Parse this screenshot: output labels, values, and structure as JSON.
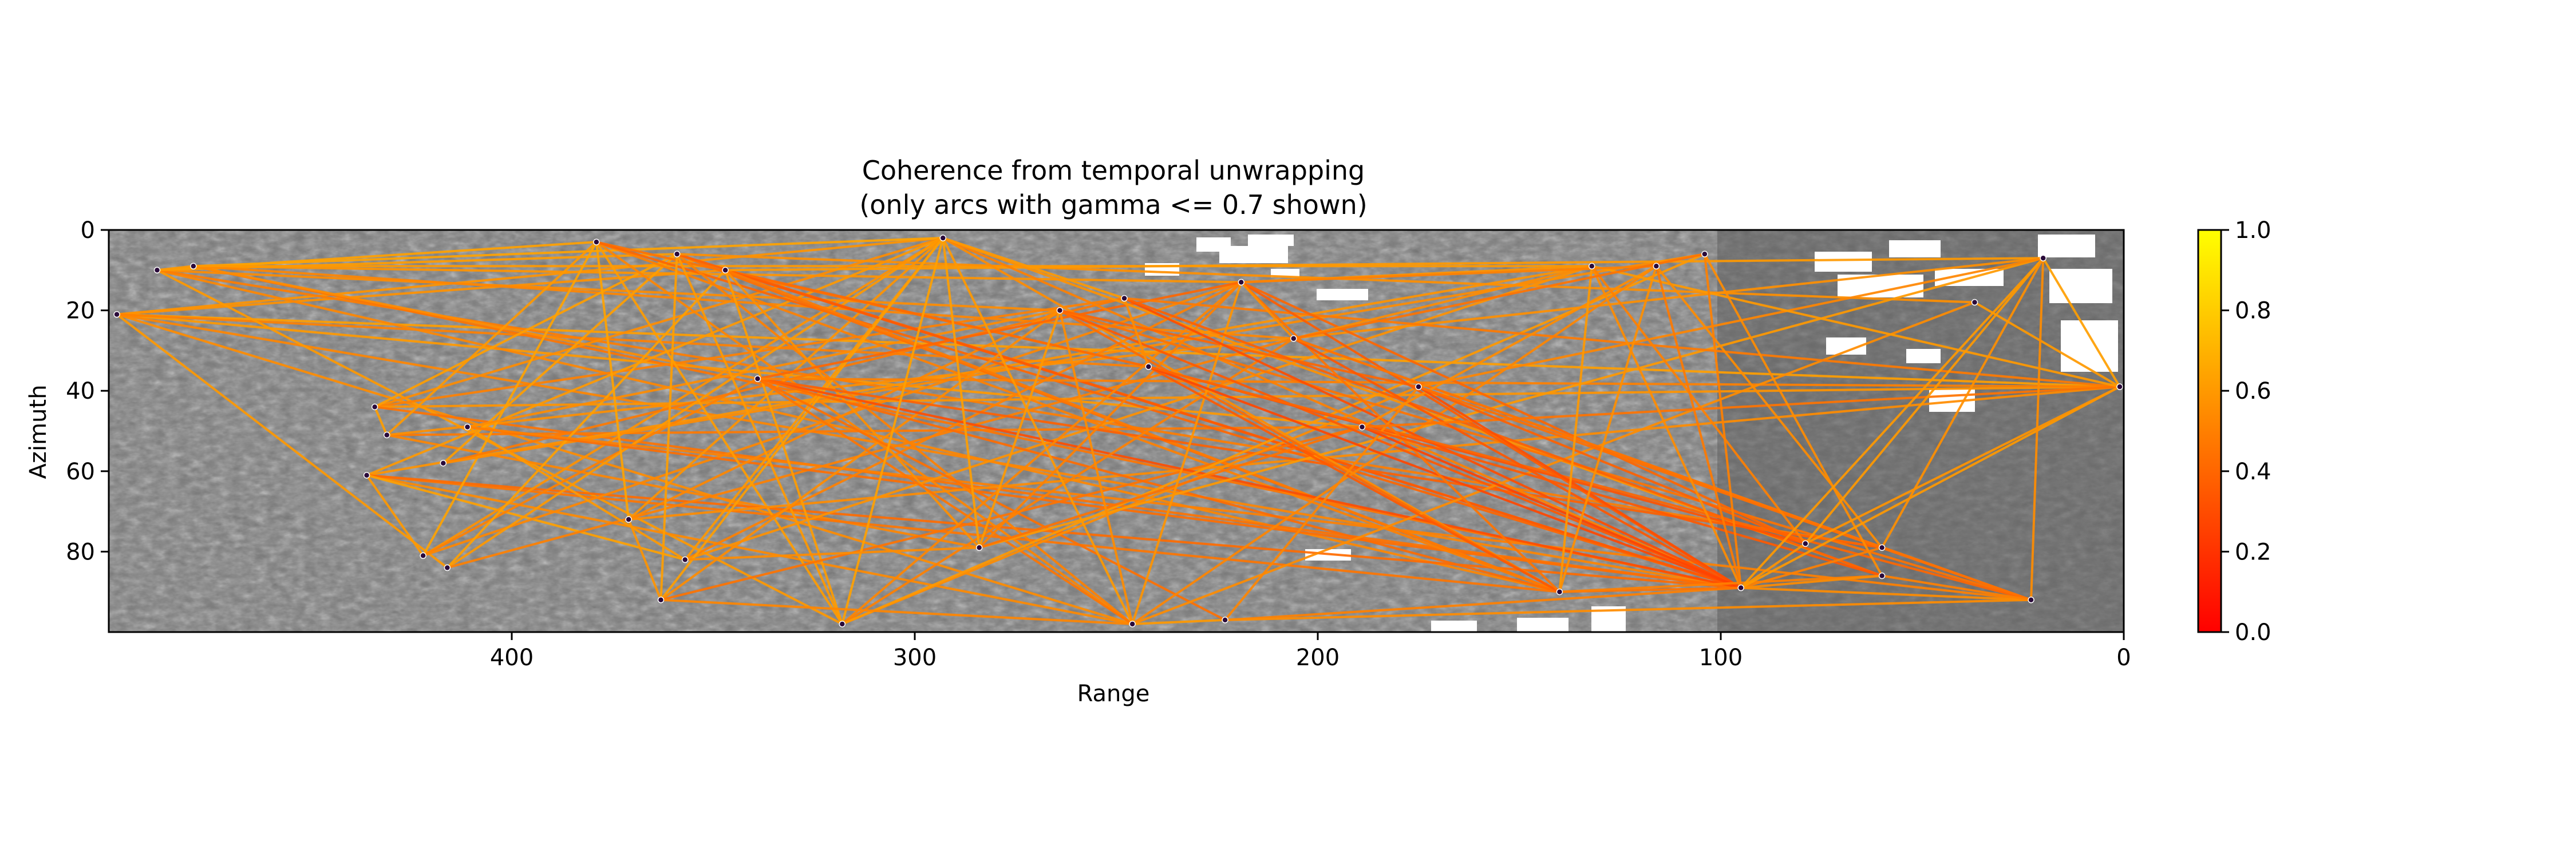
{
  "chart_data": {
    "type": "network",
    "title_line1": "Coherence from temporal unwrapping",
    "title_line2": "(only arcs with gamma <= 0.7 shown)",
    "xlabel": "Range",
    "ylabel": "Azimuth",
    "xlim": [
      500,
      0
    ],
    "ylim": [
      100,
      0
    ],
    "x_ticks": [
      400,
      300,
      200,
      100,
      0
    ],
    "y_ticks": [
      0,
      20,
      40,
      60,
      80
    ],
    "colorbar": {
      "colormap": "autumn",
      "colors": [
        "#ff0000",
        "#ffff00"
      ],
      "range": [
        0.0,
        1.0
      ],
      "ticks": [
        "0.0",
        "0.2",
        "0.4",
        "0.6",
        "0.8",
        "1.0"
      ]
    },
    "points": [
      [
        498,
        21
      ],
      [
        488,
        10
      ],
      [
        479,
        9
      ],
      [
        434,
        44
      ],
      [
        431,
        51
      ],
      [
        436,
        61
      ],
      [
        422,
        81
      ],
      [
        417,
        58
      ],
      [
        416,
        84
      ],
      [
        411,
        49
      ],
      [
        379,
        3
      ],
      [
        371,
        72
      ],
      [
        359,
        6
      ],
      [
        357,
        82
      ],
      [
        347,
        10
      ],
      [
        363,
        92
      ],
      [
        339,
        37
      ],
      [
        318,
        98
      ],
      [
        293,
        2
      ],
      [
        284,
        79
      ],
      [
        264,
        20
      ],
      [
        246,
        98
      ],
      [
        248,
        17
      ],
      [
        242,
        34
      ],
      [
        219,
        13
      ],
      [
        223,
        97
      ],
      [
        206,
        27
      ],
      [
        189,
        49
      ],
      [
        175,
        39
      ],
      [
        140,
        90
      ],
      [
        132,
        9
      ],
      [
        116,
        9
      ],
      [
        104,
        6
      ],
      [
        95,
        89
      ],
      [
        79,
        78
      ],
      [
        60,
        79
      ],
      [
        60,
        86
      ],
      [
        37,
        18
      ],
      [
        20,
        7
      ],
      [
        23,
        92
      ],
      [
        1,
        39
      ]
    ],
    "arcs": [
      [
        0,
        18,
        0.58
      ],
      [
        0,
        21,
        0.55
      ],
      [
        0,
        27,
        0.6
      ],
      [
        0,
        33,
        0.52
      ],
      [
        0,
        40,
        0.62
      ],
      [
        0,
        14,
        0.57
      ],
      [
        0,
        8,
        0.6
      ],
      [
        0,
        23,
        0.5
      ],
      [
        1,
        10,
        0.63
      ],
      [
        1,
        20,
        0.55
      ],
      [
        1,
        29,
        0.53
      ],
      [
        1,
        17,
        0.6
      ],
      [
        1,
        35,
        0.49
      ],
      [
        1,
        12,
        0.61
      ],
      [
        2,
        18,
        0.64
      ],
      [
        2,
        24,
        0.58
      ],
      [
        2,
        33,
        0.46
      ],
      [
        2,
        16,
        0.55
      ],
      [
        2,
        26,
        0.52
      ],
      [
        2,
        30,
        0.6
      ],
      [
        3,
        18,
        0.55
      ],
      [
        3,
        22,
        0.5
      ],
      [
        3,
        40,
        0.58
      ],
      [
        3,
        33,
        0.45
      ],
      [
        3,
        12,
        0.62
      ],
      [
        4,
        19,
        0.52
      ],
      [
        4,
        27,
        0.47
      ],
      [
        4,
        38,
        0.56
      ],
      [
        4,
        10,
        0.6
      ],
      [
        5,
        18,
        0.6
      ],
      [
        5,
        21,
        0.54
      ],
      [
        5,
        29,
        0.46
      ],
      [
        5,
        30,
        0.58
      ],
      [
        5,
        33,
        0.42
      ],
      [
        5,
        13,
        0.63
      ],
      [
        6,
        18,
        0.57
      ],
      [
        6,
        16,
        0.5
      ],
      [
        6,
        24,
        0.53
      ],
      [
        6,
        10,
        0.64
      ],
      [
        7,
        22,
        0.48
      ],
      [
        7,
        32,
        0.55
      ],
      [
        7,
        12,
        0.62
      ],
      [
        8,
        18,
        0.6
      ],
      [
        8,
        26,
        0.5
      ],
      [
        8,
        14,
        0.63
      ],
      [
        9,
        20,
        0.55
      ],
      [
        9,
        33,
        0.43
      ],
      [
        9,
        39,
        0.5
      ],
      [
        10,
        17,
        0.61
      ],
      [
        10,
        21,
        0.52
      ],
      [
        10,
        23,
        0.45
      ],
      [
        10,
        29,
        0.5
      ],
      [
        10,
        33,
        0.4
      ],
      [
        10,
        11,
        0.64
      ],
      [
        11,
        18,
        0.58
      ],
      [
        11,
        20,
        0.53
      ],
      [
        11,
        40,
        0.55
      ],
      [
        12,
        17,
        0.6
      ],
      [
        12,
        21,
        0.5
      ],
      [
        12,
        29,
        0.44
      ],
      [
        12,
        33,
        0.38
      ],
      [
        12,
        15,
        0.62
      ],
      [
        12,
        37,
        0.56
      ],
      [
        13,
        18,
        0.6
      ],
      [
        13,
        24,
        0.5
      ],
      [
        13,
        30,
        0.57
      ],
      [
        14,
        17,
        0.61
      ],
      [
        14,
        19,
        0.56
      ],
      [
        14,
        23,
        0.42
      ],
      [
        14,
        33,
        0.35
      ],
      [
        14,
        29,
        0.48
      ],
      [
        14,
        38,
        0.6
      ],
      [
        15,
        18,
        0.62
      ],
      [
        15,
        20,
        0.55
      ],
      [
        15,
        27,
        0.45
      ],
      [
        16,
        21,
        0.46
      ],
      [
        16,
        24,
        0.4
      ],
      [
        16,
        33,
        0.3
      ],
      [
        16,
        35,
        0.38
      ],
      [
        16,
        29,
        0.42
      ],
      [
        16,
        40,
        0.5
      ],
      [
        16,
        25,
        0.44
      ],
      [
        17,
        18,
        0.63
      ],
      [
        17,
        24,
        0.52
      ],
      [
        17,
        26,
        0.5
      ],
      [
        17,
        28,
        0.55
      ],
      [
        17,
        32,
        0.6
      ],
      [
        18,
        21,
        0.6
      ],
      [
        18,
        29,
        0.55
      ],
      [
        18,
        33,
        0.5
      ],
      [
        18,
        36,
        0.57
      ],
      [
        18,
        19,
        0.62
      ],
      [
        18,
        22,
        0.6
      ],
      [
        19,
        24,
        0.5
      ],
      [
        19,
        38,
        0.6
      ],
      [
        19,
        27,
        0.45
      ],
      [
        20,
        21,
        0.55
      ],
      [
        20,
        33,
        0.35
      ],
      [
        20,
        39,
        0.45
      ],
      [
        20,
        29,
        0.42
      ],
      [
        20,
        28,
        0.4
      ],
      [
        21,
        24,
        0.58
      ],
      [
        21,
        31,
        0.52
      ],
      [
        21,
        37,
        0.55
      ],
      [
        21,
        25,
        0.6
      ],
      [
        22,
        33,
        0.3
      ],
      [
        22,
        36,
        0.38
      ],
      [
        22,
        40,
        0.48
      ],
      [
        22,
        23,
        0.55
      ],
      [
        23,
        29,
        0.35
      ],
      [
        23,
        34,
        0.32
      ],
      [
        23,
        33,
        0.28
      ],
      [
        23,
        39,
        0.4
      ],
      [
        24,
        33,
        0.36
      ],
      [
        24,
        29,
        0.45
      ],
      [
        24,
        34,
        0.4
      ],
      [
        24,
        30,
        0.58
      ],
      [
        24,
        26,
        0.55
      ],
      [
        25,
        33,
        0.5
      ],
      [
        25,
        39,
        0.55
      ],
      [
        25,
        28,
        0.52
      ],
      [
        26,
        33,
        0.34
      ],
      [
        26,
        35,
        0.4
      ],
      [
        26,
        39,
        0.46
      ],
      [
        26,
        30,
        0.55
      ],
      [
        27,
        33,
        0.26
      ],
      [
        27,
        36,
        0.35
      ],
      [
        27,
        40,
        0.45
      ],
      [
        27,
        31,
        0.55
      ],
      [
        28,
        33,
        0.3
      ],
      [
        28,
        34,
        0.38
      ],
      [
        28,
        38,
        0.52
      ],
      [
        28,
        39,
        0.44
      ],
      [
        29,
        30,
        0.6
      ],
      [
        29,
        33,
        0.45
      ],
      [
        29,
        36,
        0.5
      ],
      [
        29,
        31,
        0.56
      ],
      [
        30,
        33,
        0.55
      ],
      [
        30,
        34,
        0.5
      ],
      [
        30,
        40,
        0.6
      ],
      [
        31,
        33,
        0.48
      ],
      [
        31,
        35,
        0.55
      ],
      [
        31,
        24,
        0.5
      ],
      [
        32,
        33,
        0.5
      ],
      [
        32,
        36,
        0.55
      ],
      [
        32,
        26,
        0.45
      ],
      [
        33,
        34,
        0.58
      ],
      [
        33,
        35,
        0.5
      ],
      [
        33,
        36,
        0.55
      ],
      [
        33,
        38,
        0.6
      ],
      [
        33,
        39,
        0.55
      ],
      [
        33,
        40,
        0.6
      ],
      [
        34,
        38,
        0.6
      ],
      [
        34,
        40,
        0.58
      ],
      [
        35,
        38,
        0.56
      ],
      [
        36,
        39,
        0.5
      ],
      [
        37,
        40,
        0.6
      ],
      [
        38,
        40,
        0.62
      ],
      [
        38,
        39,
        0.55
      ],
      [
        9,
        13,
        0.6
      ],
      [
        11,
        15,
        0.58
      ],
      [
        13,
        19,
        0.55
      ],
      [
        15,
        21,
        0.52
      ],
      [
        19,
        20,
        0.6
      ],
      [
        1,
        2,
        0.6
      ],
      [
        3,
        4,
        0.62
      ],
      [
        5,
        6,
        0.6
      ]
    ]
  }
}
